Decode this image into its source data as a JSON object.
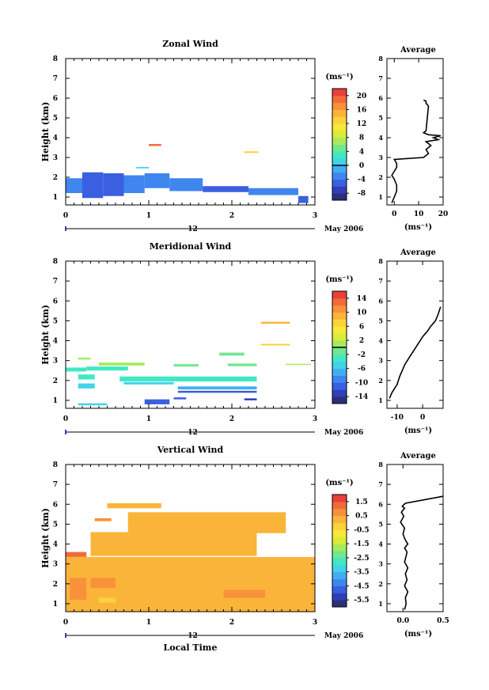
{
  "page": {
    "xlabel": "Local Time"
  },
  "chart_data": [
    {
      "type": "heatmap",
      "title": "Zonal Wind",
      "ylabel": "Height (km)",
      "xlim": [
        0,
        3
      ],
      "ylim": [
        0.6,
        8
      ],
      "xticks": [
        "0",
        "1",
        "2",
        "3"
      ],
      "yticks": [
        "1",
        "2",
        "3",
        "4",
        "5",
        "6",
        "7",
        "8"
      ],
      "date_label": "12",
      "month_label": "May 2006",
      "colorbar": {
        "unit": "(ms⁻¹)",
        "ticks": [
          "20",
          "16",
          "12",
          "8",
          "4",
          "0",
          "-4",
          "-8"
        ],
        "min": -10,
        "max": 22
      },
      "cells": [
        {
          "x0": 1.0,
          "x1": 1.15,
          "y0": 3.58,
          "y1": 3.68,
          "v": 18
        },
        {
          "x0": 2.15,
          "x1": 2.32,
          "y0": 3.23,
          "y1": 3.31,
          "v": 12
        },
        {
          "x0": 0.85,
          "x1": 1.0,
          "y0": 2.45,
          "y1": 2.52,
          "v": 0
        },
        {
          "x0": 0.0,
          "x1": 0.2,
          "y0": 1.2,
          "y1": 1.95,
          "v": -3
        },
        {
          "x0": 0.2,
          "x1": 0.45,
          "y0": 0.95,
          "y1": 2.25,
          "v": -6
        },
        {
          "x0": 0.45,
          "x1": 0.7,
          "y0": 1.05,
          "y1": 2.2,
          "v": -5
        },
        {
          "x0": 0.7,
          "x1": 0.95,
          "y0": 1.2,
          "y1": 2.1,
          "v": -4
        },
        {
          "x0": 0.95,
          "x1": 1.25,
          "y0": 1.45,
          "y1": 2.2,
          "v": -3
        },
        {
          "x0": 1.25,
          "x1": 1.65,
          "y0": 1.3,
          "y1": 1.95,
          "v": -4
        },
        {
          "x0": 1.65,
          "x1": 2.2,
          "y0": 1.25,
          "y1": 1.55,
          "v": -5
        },
        {
          "x0": 2.2,
          "x1": 2.8,
          "y0": 1.1,
          "y1": 1.45,
          "v": -4
        },
        {
          "x0": 2.8,
          "x1": 2.92,
          "y0": 0.7,
          "y1": 1.05,
          "v": -5
        }
      ],
      "profile": {
        "title": "Average",
        "xlabel": "(ms⁻¹)",
        "xlim": [
          -3,
          20
        ],
        "xticks": [
          "0",
          "10",
          "20"
        ],
        "x": [
          -1,
          0,
          1,
          1,
          0,
          -1,
          0,
          1,
          1,
          0,
          12,
          14,
          13,
          15,
          13,
          18,
          16,
          19,
          14,
          12,
          13,
          14,
          13,
          13,
          12
        ],
        "y": [
          0.7,
          1.0,
          1.3,
          1.6,
          1.9,
          2.1,
          2.3,
          2.5,
          2.7,
          2.9,
          3.0,
          3.2,
          3.4,
          3.6,
          3.8,
          3.9,
          4.0,
          4.1,
          4.15,
          4.25,
          4.35,
          5.6,
          5.75,
          5.85,
          5.9
        ]
      }
    },
    {
      "type": "heatmap",
      "title": "Meridional Wind",
      "ylabel": "Height (km)",
      "xlim": [
        0,
        3
      ],
      "ylim": [
        0.6,
        8
      ],
      "xticks": [
        "0",
        "1",
        "2",
        "3"
      ],
      "yticks": [
        "1",
        "2",
        "3",
        "4",
        "5",
        "6",
        "7",
        "8"
      ],
      "date_label": "12",
      "month_label": "May 2006",
      "colorbar": {
        "unit": "(ms⁻¹)",
        "ticks": [
          "14",
          "10",
          "6",
          "2",
          "-2",
          "-6",
          "-10",
          "-14"
        ],
        "min": -16,
        "max": 16
      },
      "cells": [
        {
          "x0": 2.35,
          "x1": 2.7,
          "y0": 4.85,
          "y1": 4.95,
          "v": 8
        },
        {
          "x0": 2.35,
          "x1": 2.7,
          "y0": 3.76,
          "y1": 3.84,
          "v": 6
        },
        {
          "x0": 0.15,
          "x1": 0.3,
          "y0": 3.05,
          "y1": 3.15,
          "v": 0
        },
        {
          "x0": 1.85,
          "x1": 2.15,
          "y0": 3.25,
          "y1": 3.4,
          "v": -1
        },
        {
          "x0": 0.4,
          "x1": 0.95,
          "y0": 2.75,
          "y1": 2.9,
          "v": 0
        },
        {
          "x0": 1.3,
          "x1": 1.6,
          "y0": 2.7,
          "y1": 2.82,
          "v": -1
        },
        {
          "x0": 1.95,
          "x1": 2.3,
          "y0": 2.72,
          "y1": 2.85,
          "v": -1
        },
        {
          "x0": 2.65,
          "x1": 2.95,
          "y0": 2.78,
          "y1": 2.84,
          "v": 0
        },
        {
          "x0": 0.0,
          "x1": 0.25,
          "y0": 2.45,
          "y1": 2.65,
          "v": -3
        },
        {
          "x0": 0.25,
          "x1": 0.75,
          "y0": 2.5,
          "y1": 2.7,
          "v": -4
        },
        {
          "x0": 0.15,
          "x1": 0.35,
          "y0": 2.05,
          "y1": 2.3,
          "v": -3
        },
        {
          "x0": 0.65,
          "x1": 2.3,
          "y0": 1.95,
          "y1": 2.2,
          "v": -3
        },
        {
          "x0": 0.15,
          "x1": 0.35,
          "y0": 1.6,
          "y1": 1.85,
          "v": -5
        },
        {
          "x0": 0.7,
          "x1": 1.3,
          "y0": 1.8,
          "y1": 1.92,
          "v": -5
        },
        {
          "x0": 1.35,
          "x1": 2.3,
          "y0": 1.55,
          "y1": 1.7,
          "v": -7
        },
        {
          "x0": 1.35,
          "x1": 2.3,
          "y0": 1.38,
          "y1": 1.48,
          "v": -11
        },
        {
          "x0": 0.95,
          "x1": 1.25,
          "y0": 0.8,
          "y1": 1.05,
          "v": -11
        },
        {
          "x0": 1.3,
          "x1": 1.45,
          "y0": 1.05,
          "y1": 1.15,
          "v": -12
        },
        {
          "x0": 2.15,
          "x1": 2.3,
          "y0": 1.0,
          "y1": 1.1,
          "v": -13
        },
        {
          "x0": 0.15,
          "x1": 0.5,
          "y0": 0.75,
          "y1": 0.85,
          "v": -5
        }
      ],
      "profile": {
        "title": "Average",
        "xlabel": "(ms⁻¹)",
        "xlim": [
          -14,
          8
        ],
        "xticks": [
          "-10",
          "0"
        ],
        "x": [
          -13,
          -12,
          -10,
          -9,
          -8,
          -7,
          -6,
          -5,
          -4,
          -3,
          -2,
          -1,
          0,
          1,
          2,
          3,
          4,
          5,
          6,
          7
        ],
        "y": [
          1.1,
          1.4,
          1.8,
          2.2,
          2.5,
          2.8,
          3.0,
          3.2,
          3.4,
          3.6,
          3.8,
          4.0,
          4.2,
          4.35,
          4.5,
          4.7,
          4.85,
          5.0,
          5.3,
          5.7
        ]
      }
    },
    {
      "type": "heatmap",
      "title": "Vertical Wind",
      "ylabel": "Height (km)",
      "xlim": [
        0,
        3
      ],
      "ylim": [
        0.6,
        8
      ],
      "xticks": [
        "0",
        "1",
        "2",
        "3"
      ],
      "yticks": [
        "1",
        "2",
        "3",
        "4",
        "5",
        "6",
        "7",
        "8"
      ],
      "date_label": "12",
      "month_label": "May 2006",
      "colorbar": {
        "unit": "(ms⁻¹)",
        "ticks": [
          "1.5",
          "0.5",
          "-0.5",
          "-1.5",
          "-2.5",
          "-3.5",
          "-4.5",
          "-5.5"
        ],
        "min": -6,
        "max": 2
      },
      "cells": [
        {
          "x0": 0.5,
          "x1": 1.15,
          "y0": 5.8,
          "y1": 6.05,
          "v": 0.3
        },
        {
          "x0": 0.35,
          "x1": 0.55,
          "y0": 5.15,
          "y1": 5.3,
          "v": 0.5
        },
        {
          "x0": 0.75,
          "x1": 2.65,
          "y0": 4.55,
          "y1": 5.6,
          "v": 0.4
        },
        {
          "x0": 0.3,
          "x1": 2.3,
          "y0": 3.4,
          "y1": 4.6,
          "v": 0.2
        },
        {
          "x0": 0.0,
          "x1": 0.25,
          "y0": 3.35,
          "y1": 3.6,
          "v": 1.2
        },
        {
          "x0": 0.0,
          "x1": 3.0,
          "y0": 0.6,
          "y1": 3.35,
          "v": 0.1
        },
        {
          "x0": 0.05,
          "x1": 0.25,
          "y0": 1.2,
          "y1": 2.3,
          "v": 0.9
        },
        {
          "x0": 0.3,
          "x1": 0.6,
          "y0": 1.8,
          "y1": 2.3,
          "v": 0.6
        },
        {
          "x0": 1.9,
          "x1": 2.4,
          "y0": 1.3,
          "y1": 1.7,
          "v": 0.6
        },
        {
          "x0": 0.4,
          "x1": 0.6,
          "y0": 1.05,
          "y1": 1.3,
          "v": -0.3
        }
      ],
      "profile": {
        "title": "Average",
        "xlabel": "(ms⁻¹)",
        "xlim": [
          -0.2,
          0.5
        ],
        "xticks": [
          "0.0",
          "0.5"
        ],
        "x": [
          0.02,
          0.04,
          0.03,
          0.06,
          0.02,
          0.05,
          0.03,
          0.06,
          0.02,
          0.04,
          0.05,
          0.02,
          0.06,
          0.03,
          0.0,
          0.02,
          -0.03,
          0.01,
          -0.02,
          0.02,
          -0.01,
          0.03,
          0.5
        ],
        "y": [
          0.7,
          1.0,
          1.3,
          1.6,
          1.9,
          2.2,
          2.5,
          2.8,
          3.1,
          3.4,
          3.6,
          3.8,
          4.0,
          4.2,
          4.5,
          4.8,
          5.1,
          5.4,
          5.6,
          5.8,
          5.9,
          6.05,
          6.4
        ]
      }
    }
  ]
}
